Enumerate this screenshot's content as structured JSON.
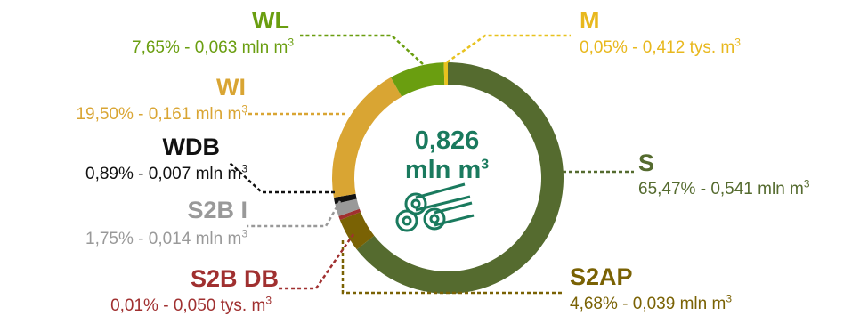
{
  "chart_data": {
    "type": "pie",
    "total": {
      "value": "0,826",
      "unit": "mln m",
      "unit_sup": "3"
    },
    "segments": [
      {
        "id": "S",
        "percent": 65.47,
        "percent_label": "65,47%",
        "amount": "0,541 mln m",
        "color": "#556b2f"
      },
      {
        "id": "S2AP",
        "percent": 4.68,
        "percent_label": "4,68%",
        "amount": "0,039 mln m",
        "color": "#7a6204"
      },
      {
        "id": "S2B DB",
        "percent": 0.01,
        "percent_label": "0,01%",
        "amount": "0,050 tys. m",
        "color": "#a03030"
      },
      {
        "id": "S2B I",
        "percent": 1.75,
        "percent_label": "1,75%",
        "amount": "0,014 mln m",
        "color": "#999999"
      },
      {
        "id": "WDB",
        "percent": 0.89,
        "percent_label": "0,89%",
        "amount": "0,007 mln m",
        "color": "#111111"
      },
      {
        "id": "WI",
        "percent": 19.5,
        "percent_label": "19,50%",
        "amount": "0,161 mln m",
        "color": "#d9a533"
      },
      {
        "id": "WL",
        "percent": 7.65,
        "percent_label": "7,65%",
        "amount": "0,063 mln m",
        "color": "#6a9e10"
      },
      {
        "id": "M",
        "percent": 0.05,
        "percent_label": "0,05%",
        "amount": "0,412 tys. m",
        "color": "#e8c21e"
      }
    ],
    "value_sep": " - ",
    "unit_sup": "3",
    "icon": "logs-icon"
  }
}
